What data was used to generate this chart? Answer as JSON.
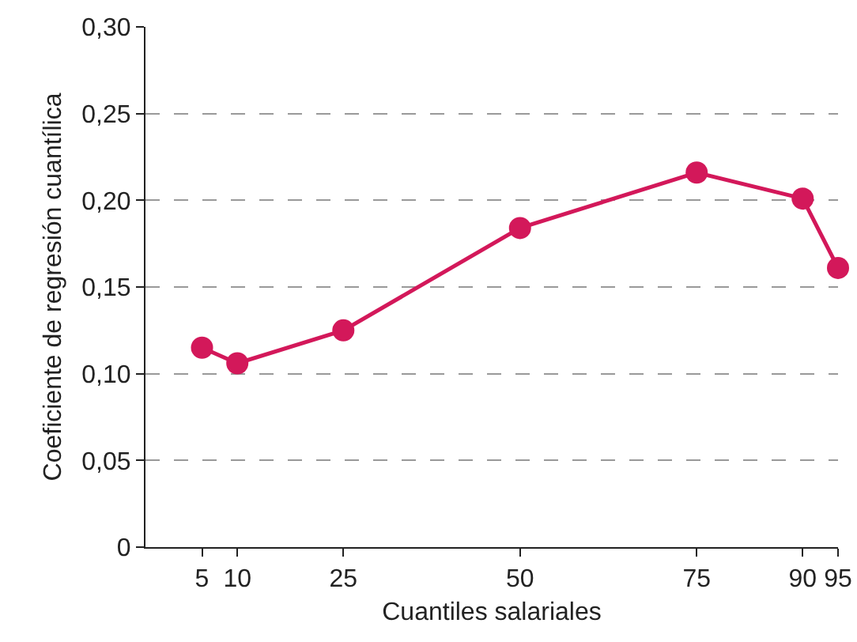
{
  "chart_data": {
    "type": "line",
    "xlabel": "Cuantiles salariales",
    "ylabel": "Coeficiente de regresión cuantílica",
    "x": [
      5,
      10,
      25,
      50,
      75,
      90,
      95
    ],
    "series": [
      {
        "color": "#d3185a",
        "values": [
          0.115,
          0.106,
          0.125,
          0.184,
          0.216,
          0.201,
          0.161
        ]
      }
    ],
    "xlim": [
      -3,
      95
    ],
    "xticks": [
      5,
      10,
      25,
      50,
      75,
      90,
      95
    ],
    "ylim": [
      0,
      0.3
    ],
    "yticks": [
      {
        "value": 0,
        "label": "0"
      },
      {
        "value": 0.05,
        "label": "0,05"
      },
      {
        "value": 0.1,
        "label": "0,10"
      },
      {
        "value": 0.15,
        "label": "0,15"
      },
      {
        "value": 0.2,
        "label": "0,20"
      },
      {
        "value": 0.25,
        "label": "0,25"
      },
      {
        "value": 0.3,
        "label": "0,30"
      }
    ],
    "grid": "y",
    "marker": "circle",
    "line_style": "solid",
    "legend": false
  }
}
